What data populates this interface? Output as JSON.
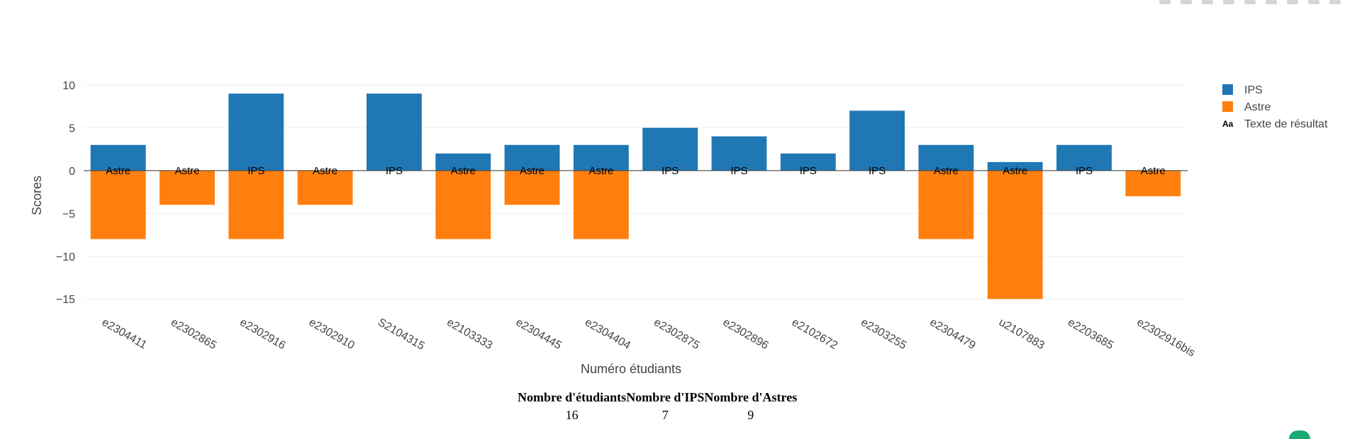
{
  "chart_data": {
    "type": "bar",
    "barmode": "relative",
    "categories": [
      "e2304411",
      "e2302865",
      "e2302916",
      "e2302910",
      "S2104315",
      "e2103333",
      "e2304445",
      "e2304404",
      "e2302875",
      "e2302896",
      "e2102672",
      "e2303255",
      "e2304479",
      "u2107883",
      "e2203685",
      "e2302916bis"
    ],
    "series": [
      {
        "name": "IPS",
        "color": "#1f77b4",
        "values": [
          3,
          0,
          9,
          0,
          9,
          2,
          3,
          3,
          5,
          4,
          2,
          7,
          3,
          1,
          3,
          0
        ]
      },
      {
        "name": "Astre",
        "color": "#ff7f0e",
        "values": [
          -8,
          -4,
          -8,
          -4,
          0,
          -8,
          -4,
          -8,
          0,
          0,
          0,
          0,
          -8,
          -15,
          0,
          -3
        ]
      }
    ],
    "result_text": [
      "Astre",
      "Astre",
      "IPS",
      "Astre",
      "IPS",
      "Astre",
      "Astre",
      "Astre",
      "IPS",
      "IPS",
      "IPS",
      "IPS",
      "Astre",
      "Astre",
      "IPS",
      "Astre"
    ],
    "legend": {
      "placement": "top-right",
      "entries": [
        "IPS",
        "Astre",
        "Texte de résultat"
      ],
      "text_glyph": "Aa"
    },
    "xlabel": "Numéro étudiants",
    "ylabel": "Scores",
    "ylim": [
      -16.8,
      11
    ],
    "yticks": [
      10,
      5,
      0,
      -5,
      -10,
      -15
    ],
    "ytick_labels": [
      "10",
      "5",
      "0",
      "−5",
      "−10",
      "−15"
    ],
    "grid": true
  },
  "summary_table": {
    "headers": [
      "Nombre d'étudiants",
      "Nombre d'IPS",
      "Nombre d'Astres"
    ],
    "values": [
      "16",
      "7",
      "9"
    ]
  }
}
